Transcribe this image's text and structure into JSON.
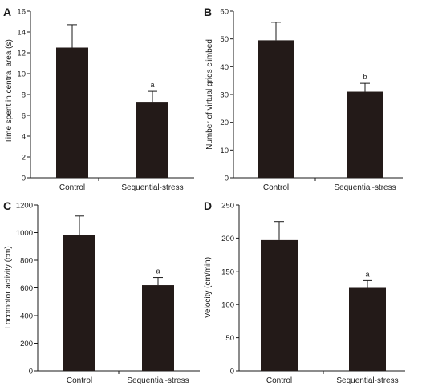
{
  "colors": {
    "bar": "#231a18",
    "axis": "#1a1a1a"
  },
  "chart_data": [
    {
      "panel": "A",
      "type": "bar",
      "categories": [
        "Control",
        "Sequential-stress"
      ],
      "values": [
        12.5,
        7.3
      ],
      "errors": [
        2.2,
        1.0
      ],
      "significance": [
        "",
        "a"
      ],
      "ylabel": "Time spent in central area (s)",
      "ylim": [
        0,
        16
      ],
      "yticks": [
        "0",
        "2",
        "4",
        "6",
        "8",
        "10",
        "12",
        "14",
        "16"
      ]
    },
    {
      "panel": "B",
      "type": "bar",
      "categories": [
        "Control",
        "Sequential-stress"
      ],
      "values": [
        49.5,
        31
      ],
      "errors": [
        6.5,
        3
      ],
      "significance": [
        "",
        "b"
      ],
      "ylabel": "Number of virtual grids climbed",
      "ylim": [
        0,
        60
      ],
      "yticks": [
        "0",
        "10",
        "20",
        "30",
        "40",
        "50",
        "60"
      ]
    },
    {
      "panel": "C",
      "type": "bar",
      "categories": [
        "Control",
        "Sequential-stress"
      ],
      "values": [
        985,
        620
      ],
      "errors": [
        135,
        55
      ],
      "significance": [
        "",
        "a"
      ],
      "ylabel": "Locomotor activity (cm)",
      "ylim": [
        0,
        1200
      ],
      "yticks": [
        "0",
        "200",
        "400",
        "600",
        "800",
        "1000",
        "1200"
      ]
    },
    {
      "panel": "D",
      "type": "bar",
      "categories": [
        "Control",
        "Sequential-stress"
      ],
      "values": [
        197,
        125
      ],
      "errors": [
        28,
        11
      ],
      "significance": [
        "",
        "a"
      ],
      "ylabel": "Velocity (cm/min)",
      "ylim": [
        0,
        250
      ],
      "yticks": [
        "0",
        "50",
        "100",
        "150",
        "200",
        "250"
      ]
    }
  ]
}
